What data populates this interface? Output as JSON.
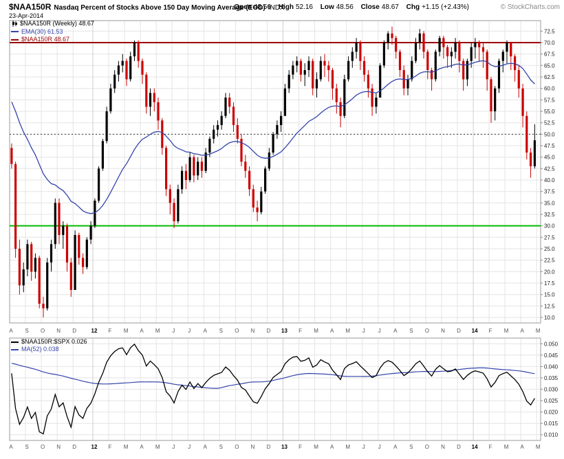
{
  "header": {
    "symbol": "$NAA150R",
    "title": "Nasdaq Percent of Stocks Above 150 Day Moving Average (EOD)",
    "exchange": "INDX",
    "date": "23-Apr-2014",
    "open_label": "Open",
    "open": "48.56",
    "high_label": "High",
    "high": "52.16",
    "low_label": "Low",
    "low": "48.56",
    "close_label": "Close",
    "close": "48.67",
    "chg_label": "Chg",
    "chg": "+1.15 (+2.43%)",
    "copyright": "© StockCharts.com"
  },
  "main_legend": {
    "line1": "$NAA150R (Weekly) 48.67",
    "line2": "EMA(30) 61.53",
    "line3": "$NAA150R 48.67"
  },
  "lower_legend": {
    "line1": "$NAA150R:$SPX 0.026",
    "line2": "MA(52) 0.038"
  },
  "colors": {
    "up": "#000000",
    "down": "#cc0000",
    "ema": "#3344aa",
    "overbought_line": "#990000",
    "oversold_line": "#00bb00",
    "midline": "#333333",
    "ratio": "#000000",
    "ratio_ma": "#3344aa",
    "grid": "#e4e4e4",
    "grid_year": "#cfcfcf",
    "frame": "#999999",
    "tick_text": "#222222",
    "month_text": "#555555"
  },
  "chart_data": [
    {
      "type": "candlestick",
      "title": "$NAA150R (Weekly)",
      "last_close": 48.67,
      "ylim": [
        8.8,
        74.8
      ],
      "ytick_start": 10.0,
      "ytick_step": 2.5,
      "ytick_end": 72.5,
      "overlays": {
        "overbought": 70.0,
        "midline": 50.0,
        "oversold": 30.0
      },
      "ema_period": 30,
      "ema_seed": 58,
      "ema_last": 61.53,
      "first_open": 47,
      "month_ticks": [
        {
          "i": 0,
          "label": "A"
        },
        {
          "i": 4,
          "label": "S"
        },
        {
          "i": 8,
          "label": "O"
        },
        {
          "i": 12,
          "label": "N"
        },
        {
          "i": 16,
          "label": "D"
        },
        {
          "i": 21,
          "label": "12",
          "year": true
        },
        {
          "i": 25,
          "label": "F"
        },
        {
          "i": 29,
          "label": "M"
        },
        {
          "i": 33,
          "label": "A"
        },
        {
          "i": 37,
          "label": "M"
        },
        {
          "i": 41,
          "label": "J"
        },
        {
          "i": 45,
          "label": "J"
        },
        {
          "i": 49,
          "label": "A"
        },
        {
          "i": 53,
          "label": "S"
        },
        {
          "i": 57,
          "label": "O"
        },
        {
          "i": 61,
          "label": "N"
        },
        {
          "i": 65,
          "label": "D"
        },
        {
          "i": 69,
          "label": "13",
          "year": true
        },
        {
          "i": 73,
          "label": "F"
        },
        {
          "i": 77,
          "label": "M"
        },
        {
          "i": 81,
          "label": "A"
        },
        {
          "i": 85,
          "label": "M"
        },
        {
          "i": 89,
          "label": "J"
        },
        {
          "i": 93,
          "label": "J"
        },
        {
          "i": 97,
          "label": "A"
        },
        {
          "i": 101,
          "label": "S"
        },
        {
          "i": 105,
          "label": "O"
        },
        {
          "i": 109,
          "label": "N"
        },
        {
          "i": 113,
          "label": "D"
        },
        {
          "i": 117,
          "label": "14",
          "year": true
        },
        {
          "i": 121,
          "label": "F"
        },
        {
          "i": 125,
          "label": "M"
        },
        {
          "i": 129,
          "label": "A"
        },
        {
          "i": 133,
          "label": "M"
        }
      ],
      "weeks": [
        [
          48,
          42.5,
          43.5
        ],
        [
          44,
          23,
          25
        ],
        [
          27,
          15,
          17
        ],
        [
          22,
          15.5,
          20.5
        ],
        [
          27,
          19,
          26
        ],
        [
          26.5,
          18,
          20
        ],
        [
          24,
          18.5,
          23
        ],
        [
          23.5,
          12,
          13
        ],
        [
          14.5,
          10,
          12
        ],
        [
          23,
          11.5,
          22
        ],
        [
          27,
          20,
          26
        ],
        [
          36,
          25,
          35
        ],
        [
          36,
          26,
          28
        ],
        [
          31,
          25,
          30
        ],
        [
          30.5,
          20,
          22
        ],
        [
          23,
          14.5,
          16
        ],
        [
          29,
          16,
          28
        ],
        [
          28.5,
          21.5,
          23
        ],
        [
          24,
          19.5,
          21
        ],
        [
          27.5,
          20.5,
          27
        ],
        [
          31,
          26,
          30
        ],
        [
          36,
          29.5,
          35.5
        ],
        [
          43,
          35,
          42.5
        ],
        [
          49,
          42,
          48.5
        ],
        [
          56,
          48,
          55
        ],
        [
          61,
          54.5,
          60
        ],
        [
          64,
          59,
          63
        ],
        [
          66,
          61.5,
          65
        ],
        [
          67.5,
          63.5,
          66
        ],
        [
          66.5,
          60.5,
          62
        ],
        [
          68,
          61.5,
          67
        ],
        [
          70.5,
          66,
          70
        ],
        [
          70.5,
          64.5,
          66
        ],
        [
          66.5,
          61,
          63
        ],
        [
          63.5,
          54.5,
          56
        ],
        [
          60,
          54,
          59
        ],
        [
          60,
          55,
          57
        ],
        [
          58,
          51,
          53
        ],
        [
          53.5,
          45.5,
          47
        ],
        [
          47.5,
          36.5,
          38
        ],
        [
          39,
          32.5,
          35
        ],
        [
          36,
          29.5,
          31
        ],
        [
          39,
          30.5,
          38
        ],
        [
          43,
          37,
          42
        ],
        [
          43.5,
          38,
          40
        ],
        [
          46,
          39.5,
          45
        ],
        [
          45.5,
          39.5,
          41
        ],
        [
          45,
          40,
          44
        ],
        [
          45,
          40.5,
          42
        ],
        [
          47,
          41.5,
          46
        ],
        [
          49.5,
          45,
          49
        ],
        [
          52,
          48,
          51
        ],
        [
          53,
          49.5,
          52
        ],
        [
          55,
          51,
          54
        ],
        [
          59,
          53.5,
          58
        ],
        [
          59,
          54.5,
          56
        ],
        [
          57,
          50.5,
          52
        ],
        [
          53.5,
          48,
          49
        ],
        [
          50,
          43,
          44
        ],
        [
          45.5,
          40.5,
          42
        ],
        [
          43,
          36.5,
          38
        ],
        [
          39,
          33,
          34
        ],
        [
          35.5,
          31,
          33
        ],
        [
          38.5,
          32.5,
          37.5
        ],
        [
          43,
          37,
          42.5
        ],
        [
          47,
          42,
          46
        ],
        [
          50.5,
          45.5,
          50
        ],
        [
          53,
          49,
          52
        ],
        [
          55,
          50.5,
          54
        ],
        [
          61,
          54,
          60
        ],
        [
          64,
          59,
          63
        ],
        [
          66,
          62,
          65
        ],
        [
          67,
          63.5,
          66
        ],
        [
          66.5,
          61.5,
          63
        ],
        [
          65.5,
          60.5,
          64
        ],
        [
          67,
          62.5,
          66
        ],
        [
          66.5,
          58.5,
          60
        ],
        [
          63.5,
          58,
          62
        ],
        [
          67,
          61.5,
          66
        ],
        [
          67.5,
          62.5,
          65
        ],
        [
          66,
          61.5,
          64
        ],
        [
          64.5,
          57.5,
          60
        ],
        [
          61,
          54.5,
          57
        ],
        [
          58,
          51.5,
          54
        ],
        [
          63,
          53.5,
          62
        ],
        [
          67,
          61.5,
          66
        ],
        [
          69,
          64.5,
          68
        ],
        [
          71,
          66.5,
          70
        ],
        [
          70.5,
          64,
          66
        ],
        [
          67,
          61.5,
          63
        ],
        [
          64,
          58,
          60
        ],
        [
          61,
          54,
          56
        ],
        [
          59,
          54.5,
          58
        ],
        [
          65.5,
          58,
          65
        ],
        [
          70.5,
          64.5,
          70
        ],
        [
          72.5,
          68.5,
          72
        ],
        [
          73.5,
          69.5,
          71
        ],
        [
          71.5,
          66.5,
          68
        ],
        [
          68.5,
          62.5,
          64
        ],
        [
          65,
          58.5,
          60
        ],
        [
          63,
          58.5,
          62
        ],
        [
          67,
          61.5,
          66
        ],
        [
          71,
          65.5,
          70
        ],
        [
          73,
          68.5,
          72
        ],
        [
          72.5,
          66.5,
          68
        ],
        [
          68.5,
          62,
          64
        ],
        [
          64.5,
          59.5,
          62
        ],
        [
          68.5,
          61.5,
          68
        ],
        [
          71.5,
          67,
          71
        ],
        [
          71.5,
          66.5,
          69
        ],
        [
          69.5,
          64.5,
          67
        ],
        [
          69,
          64.5,
          68
        ],
        [
          71,
          66.5,
          70
        ],
        [
          70.5,
          63.5,
          66
        ],
        [
          66.5,
          59.5,
          62
        ],
        [
          66.5,
          60.5,
          66
        ],
        [
          70,
          64.5,
          69
        ],
        [
          71,
          66.5,
          70
        ],
        [
          70.5,
          66,
          69
        ],
        [
          70,
          64.5,
          68
        ],
        [
          68.5,
          59.5,
          62
        ],
        [
          62.5,
          52.5,
          55
        ],
        [
          60.5,
          53,
          60
        ],
        [
          66.5,
          59,
          66
        ],
        [
          68.5,
          63.5,
          68
        ],
        [
          70.5,
          65.5,
          70
        ],
        [
          70,
          64,
          67
        ],
        [
          67.5,
          61.5,
          64
        ],
        [
          65,
          58,
          60
        ],
        [
          61,
          51.5,
          54
        ],
        [
          55,
          44.5,
          46
        ],
        [
          47,
          40.5,
          43
        ],
        [
          52.16,
          42.5,
          48.67
        ]
      ]
    },
    {
      "type": "line",
      "title": "$NAA150R:$SPX",
      "last": 0.026,
      "ylim": [
        0.0075,
        0.0525
      ],
      "ytick_start": 0.01,
      "ytick_step": 0.005,
      "ytick_end": 0.05,
      "ma_period": 52,
      "ma_seed": 0.0415,
      "ma_last": 0.038,
      "values": [
        0.037,
        0.0215,
        0.0146,
        0.0176,
        0.0222,
        0.0172,
        0.0198,
        0.0113,
        0.0104,
        0.0183,
        0.0213,
        0.0277,
        0.0223,
        0.024,
        0.018,
        0.0133,
        0.0224,
        0.0187,
        0.0172,
        0.0216,
        0.0239,
        0.028,
        0.0331,
        0.037,
        0.0419,
        0.0447,
        0.0466,
        0.0478,
        0.0482,
        0.0452,
        0.0482,
        0.0498,
        0.047,
        0.045,
        0.0402,
        0.0424,
        0.0408,
        0.039,
        0.0352,
        0.0289,
        0.027,
        0.024,
        0.029,
        0.0318,
        0.0299,
        0.0332,
        0.0303,
        0.0325,
        0.0307,
        0.033,
        0.0348,
        0.0361,
        0.0368,
        0.0374,
        0.0398,
        0.0384,
        0.036,
        0.034,
        0.0308,
        0.0297,
        0.027,
        0.0245,
        0.0238,
        0.0268,
        0.0302,
        0.0325,
        0.0352,
        0.0365,
        0.0378,
        0.0412,
        0.043,
        0.0441,
        0.0444,
        0.0423,
        0.0427,
        0.0438,
        0.0397,
        0.0407,
        0.043,
        0.042,
        0.0412,
        0.0384,
        0.0363,
        0.0343,
        0.0391,
        0.0407,
        0.0413,
        0.0421,
        0.0402,
        0.0386,
        0.0369,
        0.0351,
        0.036,
        0.0394,
        0.0416,
        0.0426,
        0.0419,
        0.0402,
        0.0382,
        0.036,
        0.0372,
        0.0391,
        0.0412,
        0.0424,
        0.0402,
        0.0377,
        0.0358,
        0.0388,
        0.0404,
        0.039,
        0.0377,
        0.038,
        0.0389,
        0.0366,
        0.0343,
        0.0361,
        0.0374,
        0.0381,
        0.0376,
        0.0371,
        0.0346,
        0.031,
        0.033,
        0.036,
        0.0369,
        0.0375,
        0.0359,
        0.0343,
        0.0322,
        0.029,
        0.0248,
        0.0231,
        0.026
      ]
    }
  ]
}
